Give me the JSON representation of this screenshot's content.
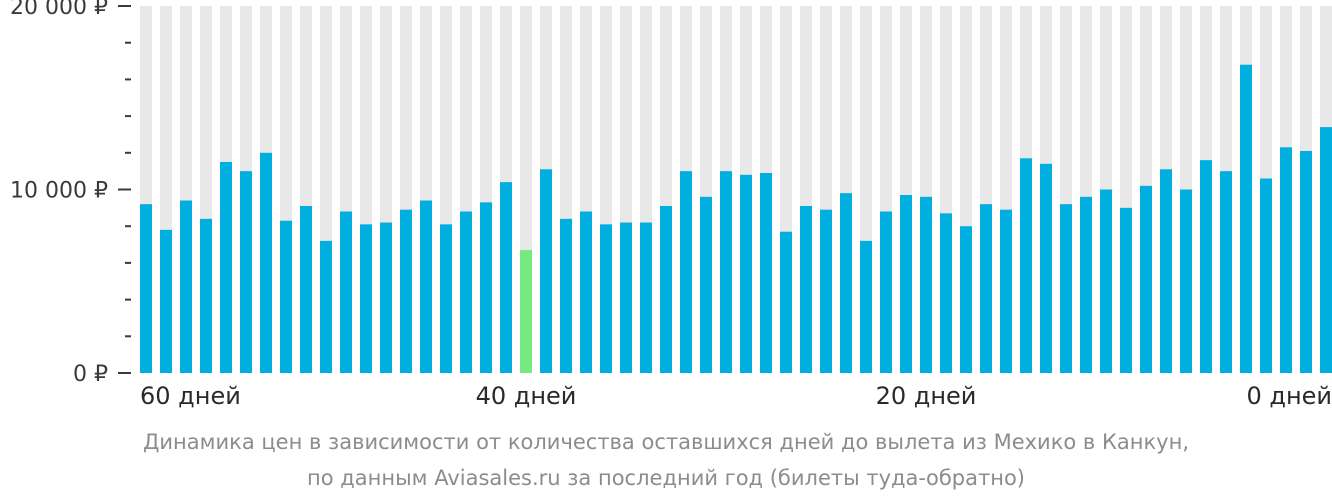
{
  "chart_data": {
    "type": "bar",
    "currency": "₽",
    "ylim": [
      0,
      20000
    ],
    "yticks": [
      {
        "value": 0,
        "label": "0 ₽"
      },
      {
        "value": 10000,
        "label": "10 000 ₽"
      },
      {
        "value": 20000,
        "label": "20 000 ₽"
      }
    ],
    "xtick_labels": [
      {
        "index": 0,
        "label": "60 дней"
      },
      {
        "index": 19,
        "label": "40 дней"
      },
      {
        "index": 39,
        "label": "20 дней"
      },
      {
        "index": 59,
        "label": "0 дней"
      }
    ],
    "values": [
      9200,
      7800,
      9400,
      8400,
      11500,
      11000,
      12000,
      8300,
      9100,
      7200,
      8800,
      8100,
      8200,
      8900,
      9400,
      8100,
      8800,
      9300,
      10400,
      6700,
      11100,
      8400,
      8800,
      8100,
      8200,
      8200,
      9100,
      11000,
      9600,
      11000,
      10800,
      10900,
      7700,
      9100,
      8900,
      9800,
      7200,
      8800,
      9700,
      9600,
      8700,
      8000,
      9200,
      8900,
      11700,
      11400,
      9200,
      9600,
      10000,
      9000,
      10200,
      11100,
      10000,
      11600,
      11000,
      16800,
      10600,
      12300,
      12100,
      13400
    ],
    "highlight_index": 19,
    "colors": {
      "bar": "#00aee0",
      "highlight": "#74ea80",
      "background_column": "#e8e8e8",
      "tick": "#3a3a3a"
    },
    "grid": false,
    "caption": [
      "Динамика цен в зависимости от количества оставшихся дней до вылета из Мехико в Канкун,",
      "по данным Aviasales.ru за последний год (билеты туда-обратно)"
    ]
  }
}
